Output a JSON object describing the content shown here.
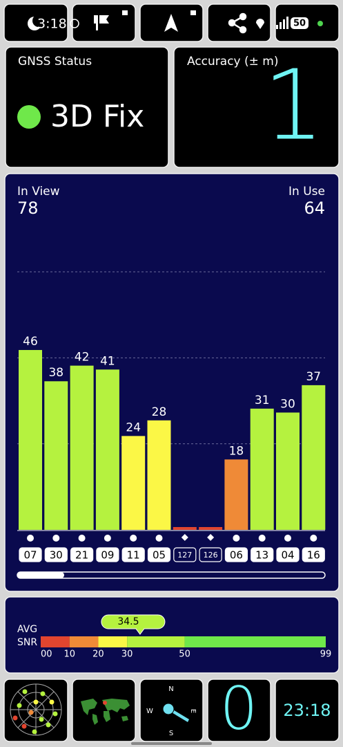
{
  "status_bar": {
    "time": "3:18",
    "battery": "50"
  },
  "gnss_status": {
    "label": "GNSS Status",
    "fix": "3D Fix"
  },
  "accuracy": {
    "label": "Accuracy (± m)",
    "value": 1
  },
  "satellites": {
    "in_view_label": "In View",
    "in_view": 78,
    "in_use_label": "In Use",
    "in_use": 64,
    "ylim": [
      0,
      66
    ],
    "grid_lines": [
      22,
      44,
      66
    ],
    "bars": [
      {
        "id": "07",
        "snr": 46,
        "color": "#b5f23f",
        "marker": "dot",
        "used": true
      },
      {
        "id": "30",
        "snr": 38,
        "color": "#b5f23f",
        "marker": "dot",
        "used": true
      },
      {
        "id": "21",
        "snr": 42,
        "color": "#b5f23f",
        "marker": "dot",
        "used": true
      },
      {
        "id": "09",
        "snr": 41,
        "color": "#b5f23f",
        "marker": "dot",
        "used": true
      },
      {
        "id": "11",
        "snr": 24,
        "color": "#fbf746",
        "marker": "dot",
        "used": true
      },
      {
        "id": "05",
        "snr": 28,
        "color": "#fbf746",
        "marker": "dot",
        "used": true
      },
      {
        "id": "127",
        "snr": null,
        "color": "#e2452f",
        "marker": "diamond",
        "used": false
      },
      {
        "id": "126",
        "snr": null,
        "color": "#e2452f",
        "marker": "diamond",
        "used": false
      },
      {
        "id": "06",
        "snr": 18,
        "color": "#ef8a37",
        "marker": "dot",
        "used": true
      },
      {
        "id": "13",
        "snr": 31,
        "color": "#b5f23f",
        "marker": "dot",
        "used": true
      },
      {
        "id": "04",
        "snr": 30,
        "color": "#b5f23f",
        "marker": "dot",
        "used": true
      },
      {
        "id": "16",
        "snr": 37,
        "color": "#b5f23f",
        "marker": "dot",
        "used": true
      }
    ]
  },
  "snr": {
    "avg_label": "AVG",
    "snr_label": "SNR",
    "average": 34.5,
    "scale_lim": [
      0,
      99
    ],
    "bands": [
      {
        "from": 0,
        "to": 10,
        "color": "#e2452f"
      },
      {
        "from": 10,
        "to": 20,
        "color": "#ef8a37"
      },
      {
        "from": 20,
        "to": 30,
        "color": "#fbf746"
      },
      {
        "from": 30,
        "to": 50,
        "color": "#b5f23f"
      },
      {
        "from": 50,
        "to": 99,
        "color": "#6fe84a"
      }
    ],
    "ticks": [
      {
        "value": 0,
        "label": "00"
      },
      10,
      20,
      30,
      50,
      99
    ]
  },
  "bottom": {
    "compass": {
      "n": "N",
      "s": "S",
      "w": "W",
      "e": "E"
    },
    "count": 0,
    "clock": "23:18"
  }
}
